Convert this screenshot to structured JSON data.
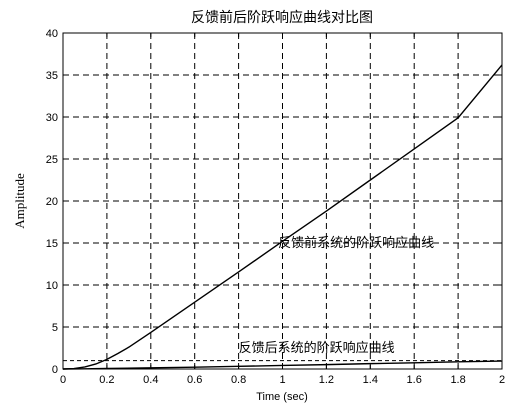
{
  "chart_data": {
    "type": "line",
    "title": "反馈前后阶跃响应曲线对比图",
    "xlabel": "Time (sec)",
    "ylabel": "Amplitude",
    "xlim": [
      0,
      2
    ],
    "ylim": [
      0,
      40
    ],
    "xticks": [
      0,
      0.2,
      0.4,
      0.6,
      0.8,
      1,
      1.2,
      1.4,
      1.6,
      1.8,
      2
    ],
    "yticks": [
      0,
      5,
      10,
      15,
      20,
      25,
      30,
      35,
      40
    ],
    "xtick_labels": [
      "0",
      "0.2",
      "0.4",
      "0.6",
      "0.8",
      "1",
      "1.2",
      "1.4",
      "1.6",
      "1.8",
      "2"
    ],
    "ytick_labels": [
      "0",
      "5",
      "10",
      "15",
      "20",
      "25",
      "30",
      "35",
      "40"
    ],
    "grid": true,
    "reference_line": {
      "y": 1
    },
    "series": [
      {
        "x": [
          0,
          0.05,
          0.1,
          0.15,
          0.2,
          0.25,
          0.3,
          0.4,
          0.5,
          0.6,
          0.8,
          1.0,
          1.2,
          1.4,
          1.6,
          1.8,
          2.0
        ],
        "y": [
          0,
          0.05,
          0.25,
          0.6,
          1.15,
          1.85,
          2.6,
          4.35,
          6.15,
          7.95,
          11.55,
          15.2,
          18.8,
          22.5,
          26.2,
          29.9,
          36.2
        ]
      },
      {
        "x": [
          0,
          0.1,
          0.2,
          0.4,
          0.6,
          0.8,
          1.0,
          1.2,
          1.4,
          1.6,
          1.8,
          2.0
        ],
        "y": [
          0,
          0.02,
          0.06,
          0.14,
          0.22,
          0.32,
          0.42,
          0.52,
          0.64,
          0.74,
          0.86,
          0.95
        ]
      }
    ],
    "annotations": [
      {
        "text": "反馈前系统的阶跃响应曲线",
        "x": 0.98,
        "y": 14.5
      },
      {
        "text": "反馈后系统的阶跃响应曲线",
        "x": 0.8,
        "y": 2.0
      }
    ]
  }
}
